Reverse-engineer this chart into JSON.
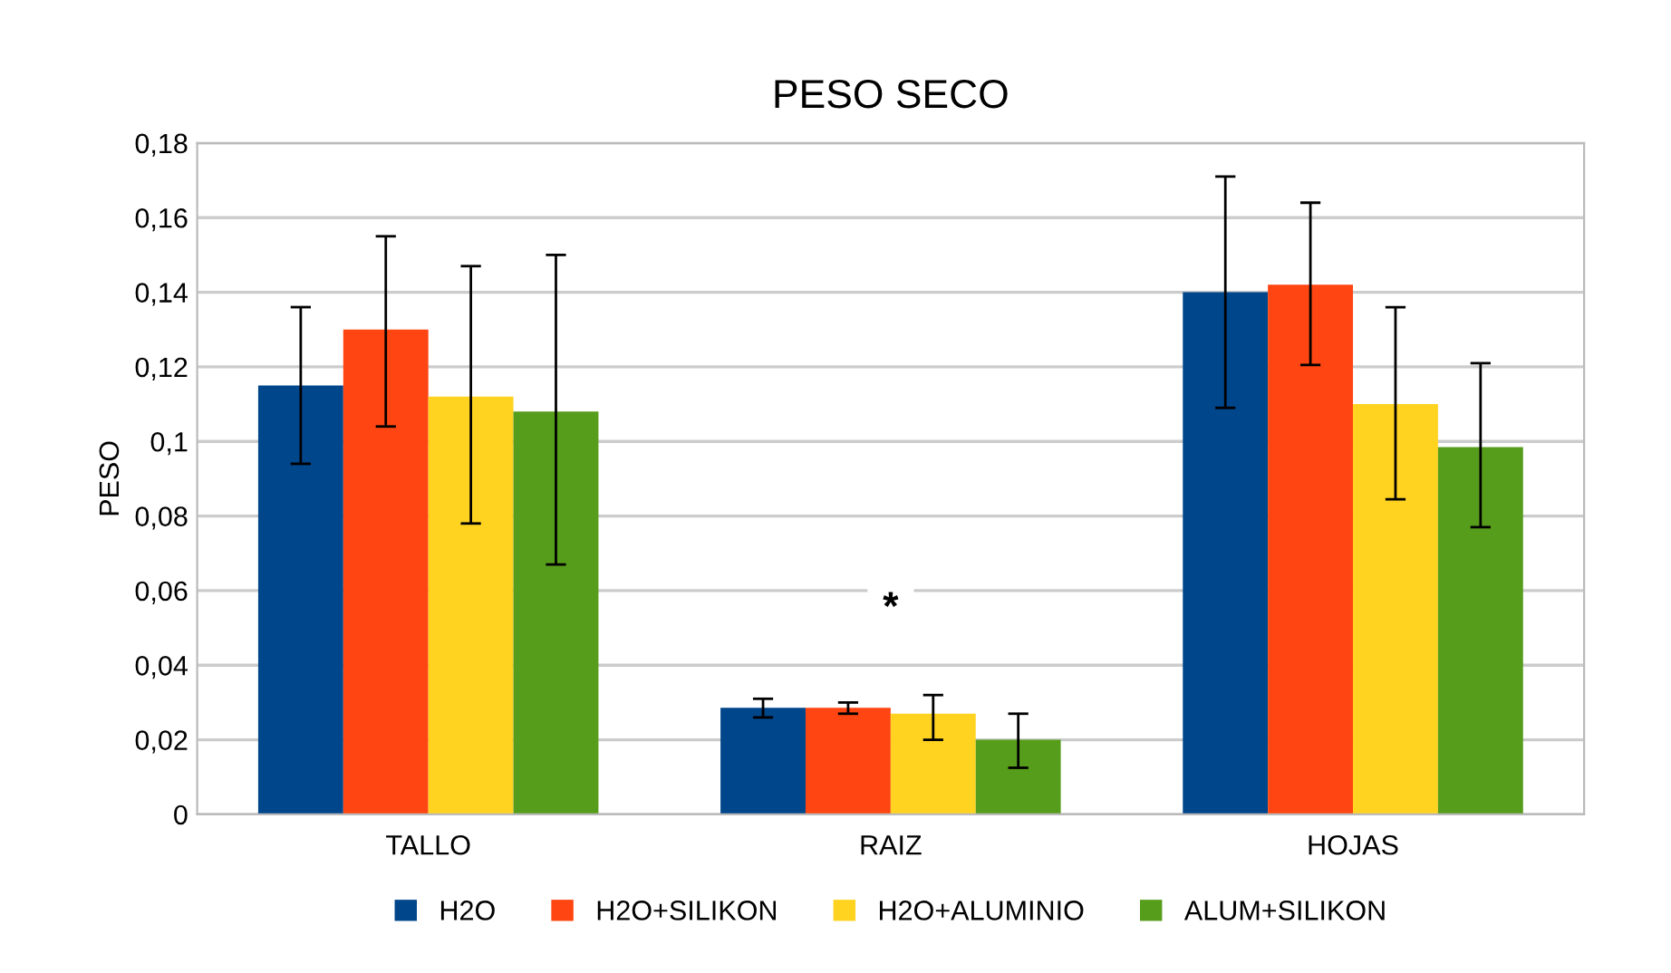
{
  "chart_data": {
    "type": "bar",
    "title": "PESO SECO",
    "ylabel": "PESO",
    "categories": [
      "TALLO",
      "RAIZ",
      "HOJAS"
    ],
    "series": [
      {
        "name": "H2O",
        "color": "#00468b",
        "values": [
          0.115,
          0.0286,
          0.14
        ],
        "errors": [
          [
            0.094,
            0.136
          ],
          [
            0.026,
            0.031
          ],
          [
            0.109,
            0.171
          ]
        ]
      },
      {
        "name": "H2O+SILIKON",
        "color": "#ff4511",
        "values": [
          0.13,
          0.0286,
          0.142
        ],
        "errors": [
          [
            0.104,
            0.155
          ],
          [
            0.027,
            0.03
          ],
          [
            0.1205,
            0.164
          ]
        ]
      },
      {
        "name": "H2O+ALUMINIO",
        "color": "#ffd320",
        "values": [
          0.112,
          0.027,
          0.11
        ],
        "errors": [
          [
            0.078,
            0.147
          ],
          [
            0.02,
            0.032
          ],
          [
            0.0845,
            0.136
          ]
        ]
      },
      {
        "name": "ALUM+SILIKON",
        "color": "#579d1c",
        "values": [
          0.108,
          0.02,
          0.0985
        ],
        "errors": [
          [
            0.067,
            0.15
          ],
          [
            0.0125,
            0.027
          ],
          [
            0.077,
            0.121
          ]
        ]
      }
    ],
    "ylim": [
      0,
      0.18
    ],
    "yticks": [
      {
        "value": 0,
        "label": "0"
      },
      {
        "value": 0.02,
        "label": "0,02"
      },
      {
        "value": 0.04,
        "label": "0,04"
      },
      {
        "value": 0.06,
        "label": "0,06"
      },
      {
        "value": 0.08,
        "label": "0,08"
      },
      {
        "value": 0.1,
        "label": "0,1"
      },
      {
        "value": 0.12,
        "label": "0,12"
      },
      {
        "value": 0.14,
        "label": "0,14"
      },
      {
        "value": 0.16,
        "label": "0,16"
      },
      {
        "value": 0.18,
        "label": "0,18"
      }
    ],
    "annotations": [
      {
        "text": "*",
        "x": "RAIZ",
        "y": 0.055
      }
    ],
    "grid": "y",
    "legend": "bottom"
  }
}
